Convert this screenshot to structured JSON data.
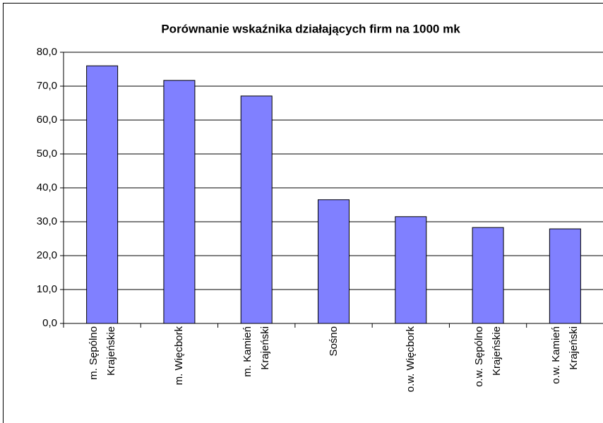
{
  "chart_data": {
    "type": "bar",
    "title": "Porównanie wskaźnika działających firm na 1000 mk",
    "categories": [
      "m. Sępólno Krajeńskie",
      "m. Więcbork",
      "m. Kamień Krajeński",
      "Sośno",
      "o.w. Więcbork",
      "o.w. Sępólno Krajeńskie",
      "o.w. Kamień Krajeński"
    ],
    "values": [
      76.0,
      71.7,
      67.1,
      36.5,
      31.5,
      28.3,
      27.9
    ],
    "color": "#8080ff",
    "ylim": [
      0,
      80
    ],
    "yticks": [
      {
        "value": 0,
        "label": "0,0"
      },
      {
        "value": 10,
        "label": "10,0"
      },
      {
        "value": 20,
        "label": "20,0"
      },
      {
        "value": 30,
        "label": "30,0"
      },
      {
        "value": 40,
        "label": "40,0"
      },
      {
        "value": 50,
        "label": "50,0"
      },
      {
        "value": 60,
        "label": "60,0"
      },
      {
        "value": 70,
        "label": "70,0"
      },
      {
        "value": 80,
        "label": "80,0"
      }
    ],
    "grid": true
  }
}
